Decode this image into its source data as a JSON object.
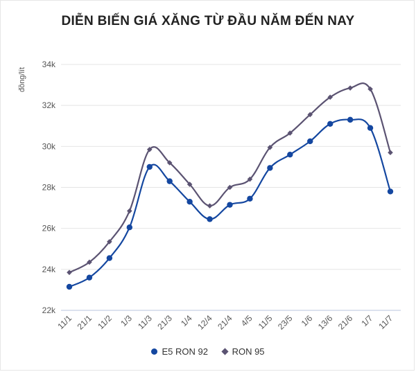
{
  "chart_data": {
    "type": "line",
    "title": "DIỄN BIẾN GIÁ XĂNG TỪ ĐẦU NĂM ĐẾN NAY",
    "xlabel": "",
    "ylabel": "đồng/lít",
    "ylim": [
      22000,
      34000
    ],
    "yticks": [
      22000,
      24000,
      26000,
      28000,
      30000,
      32000,
      34000
    ],
    "ytick_labels": [
      "22k",
      "24k",
      "26k",
      "28k",
      "30k",
      "32k",
      "34k"
    ],
    "categories": [
      "11/1",
      "21/1",
      "11/2",
      "1/3",
      "11/3",
      "21/3",
      "1/4",
      "12/4",
      "21/4",
      "4/5",
      "11/5",
      "23/5",
      "1/6",
      "13/6",
      "21/6",
      "1/7",
      "11/7"
    ],
    "series": [
      {
        "name": "E5 RON 92",
        "color": "#1447a0",
        "marker": "circle",
        "values": [
          23150,
          23600,
          24550,
          26050,
          29000,
          28300,
          27300,
          26450,
          27150,
          27450,
          28950,
          29600,
          30250,
          31100,
          31300,
          30900,
          27800
        ]
      },
      {
        "name": "RON 95",
        "color": "#5b5372",
        "marker": "diamond",
        "values": [
          23850,
          24350,
          25350,
          26850,
          29850,
          29200,
          28150,
          27100,
          28000,
          28400,
          29950,
          30650,
          31550,
          32400,
          32850,
          32800,
          29700
        ]
      }
    ],
    "grid": true,
    "legend_position": "bottom"
  }
}
